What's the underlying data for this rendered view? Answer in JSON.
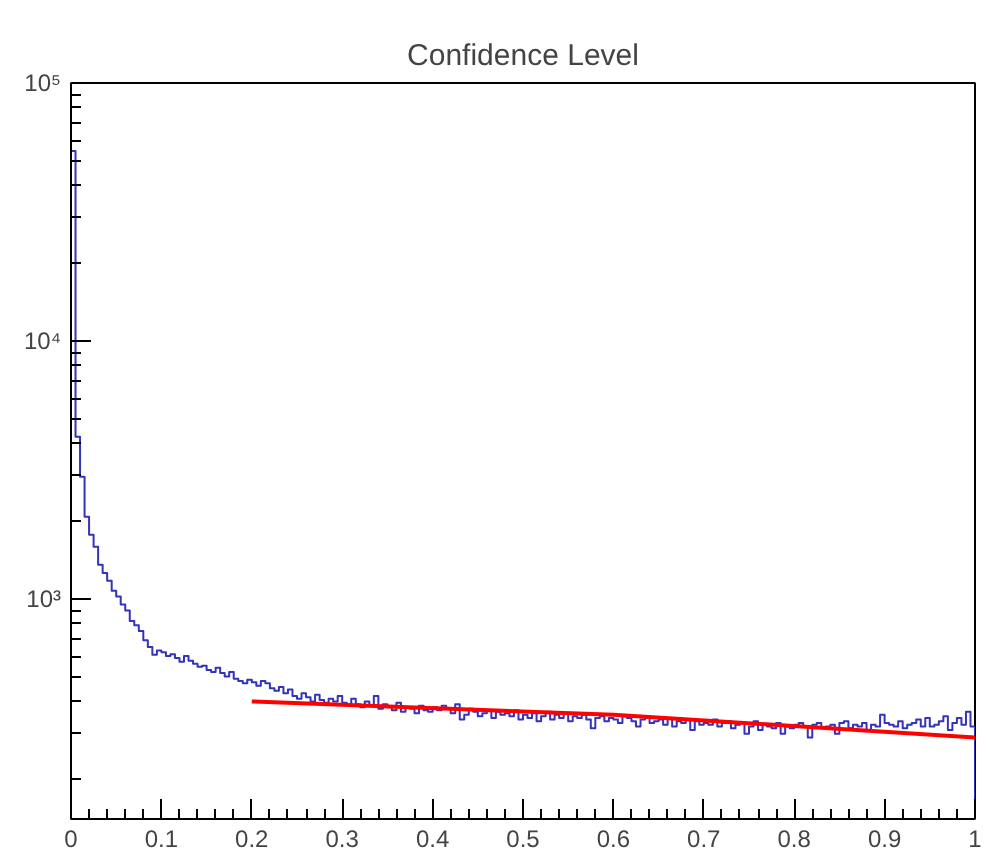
{
  "chart_data": {
    "type": "histogram",
    "title": "Confidence Level",
    "log": "y",
    "grid": false,
    "xlim": [
      0,
      1
    ],
    "xticks": [
      0,
      0.1,
      0.2,
      0.3,
      0.4,
      0.5,
      0.6,
      0.7,
      0.8,
      0.9,
      1
    ],
    "ylim": [
      140,
      100000
    ],
    "yticks": [
      {
        "value": 1000,
        "label": "10³"
      },
      {
        "value": 10000,
        "label": "10⁴"
      },
      {
        "value": 100000,
        "label": "10⁵"
      }
    ],
    "series": [
      {
        "color": "#3333bb",
        "bins": [
          0,
          0.005,
          0.01,
          0.015,
          0.02,
          0.025,
          0.03,
          0.035,
          0.04,
          0.045,
          0.05,
          0.055,
          0.06,
          0.065,
          0.07,
          0.075,
          0.08,
          0.085,
          0.09,
          0.095,
          0.1,
          0.105,
          0.11,
          0.115,
          0.12,
          0.125,
          0.13,
          0.135,
          0.14,
          0.145,
          0.15,
          0.155,
          0.16,
          0.165,
          0.17,
          0.175,
          0.18,
          0.185,
          0.19,
          0.195,
          0.2,
          0.205,
          0.21,
          0.215,
          0.22,
          0.225,
          0.23,
          0.235,
          0.24,
          0.245,
          0.25,
          0.255,
          0.26,
          0.265,
          0.27,
          0.275,
          0.28,
          0.285,
          0.29,
          0.295,
          0.3,
          0.305,
          0.31,
          0.315,
          0.32,
          0.325,
          0.33,
          0.335,
          0.34,
          0.345,
          0.35,
          0.355,
          0.36,
          0.365,
          0.37,
          0.375,
          0.38,
          0.385,
          0.39,
          0.395,
          0.4,
          0.405,
          0.41,
          0.415,
          0.42,
          0.425,
          0.43,
          0.435,
          0.44,
          0.445,
          0.45,
          0.455,
          0.46,
          0.465,
          0.47,
          0.475,
          0.48,
          0.485,
          0.49,
          0.495,
          0.5,
          0.505,
          0.51,
          0.515,
          0.52,
          0.525,
          0.53,
          0.535,
          0.54,
          0.545,
          0.55,
          0.555,
          0.56,
          0.565,
          0.57,
          0.575,
          0.58,
          0.585,
          0.59,
          0.595,
          0.6,
          0.605,
          0.61,
          0.615,
          0.62,
          0.625,
          0.63,
          0.635,
          0.64,
          0.645,
          0.65,
          0.655,
          0.66,
          0.665,
          0.67,
          0.675,
          0.68,
          0.685,
          0.69,
          0.695,
          0.7,
          0.705,
          0.71,
          0.715,
          0.72,
          0.725,
          0.73,
          0.735,
          0.74,
          0.745,
          0.75,
          0.755,
          0.76,
          0.765,
          0.77,
          0.775,
          0.78,
          0.785,
          0.79,
          0.795,
          0.8,
          0.805,
          0.81,
          0.815,
          0.82,
          0.825,
          0.83,
          0.835,
          0.84,
          0.845,
          0.85,
          0.855,
          0.86,
          0.865,
          0.87,
          0.875,
          0.88,
          0.885,
          0.89,
          0.895,
          0.9,
          0.905,
          0.91,
          0.915,
          0.92,
          0.925,
          0.93,
          0.935,
          0.94,
          0.945,
          0.95,
          0.955,
          0.96,
          0.965,
          0.97,
          0.975,
          0.98,
          0.985,
          0.99,
          0.995,
          1
        ],
        "values": [
          54500,
          4250,
          2970,
          2080,
          1770,
          1590,
          1355,
          1260,
          1175,
          1075,
          1020,
          950,
          900,
          820,
          790,
          750,
          690,
          650,
          607,
          630,
          620,
          600,
          610,
          590,
          570,
          600,
          575,
          560,
          545,
          550,
          530,
          520,
          540,
          515,
          500,
          520,
          490,
          480,
          470,
          485,
          475,
          460,
          480,
          470,
          450,
          440,
          455,
          430,
          445,
          420,
          410,
          430,
          415,
          400,
          425,
          405,
          395,
          410,
          400,
          420,
          395,
          385,
          410,
          390,
          380,
          400,
          385,
          420,
          375,
          390,
          380,
          370,
          395,
          365,
          380,
          375,
          360,
          385,
          370,
          365,
          380,
          370,
          385,
          375,
          360,
          390,
          340,
          355,
          375,
          365,
          350,
          360,
          370,
          345,
          365,
          355,
          360,
          350,
          370,
          340,
          355,
          345,
          360,
          335,
          350,
          365,
          340,
          355,
          345,
          360,
          335,
          350,
          345,
          355,
          340,
          315,
          345,
          350,
          335,
          345,
          340,
          330,
          350,
          345,
          335,
          320,
          340,
          345,
          330,
          335,
          340,
          325,
          345,
          320,
          335,
          330,
          340,
          310,
          335,
          325,
          330,
          325,
          340,
          320,
          330,
          335,
          315,
          325,
          330,
          300,
          320,
          335,
          310,
          325,
          320,
          315,
          330,
          300,
          320,
          315,
          325,
          330,
          320,
          290,
          325,
          330,
          315,
          320,
          325,
          300,
          330,
          335,
          315,
          325,
          320,
          330,
          310,
          325,
          320,
          355,
          330,
          325,
          320,
          335,
          315,
          325,
          330,
          340,
          320,
          345,
          320,
          325,
          335,
          350,
          310,
          330,
          345,
          325,
          365,
          320
        ]
      },
      {
        "type": "line",
        "color": "#ff0000",
        "x": [
          0.2,
          0.6,
          1.0
        ],
        "values": [
          400,
          355,
          290
        ]
      }
    ]
  }
}
